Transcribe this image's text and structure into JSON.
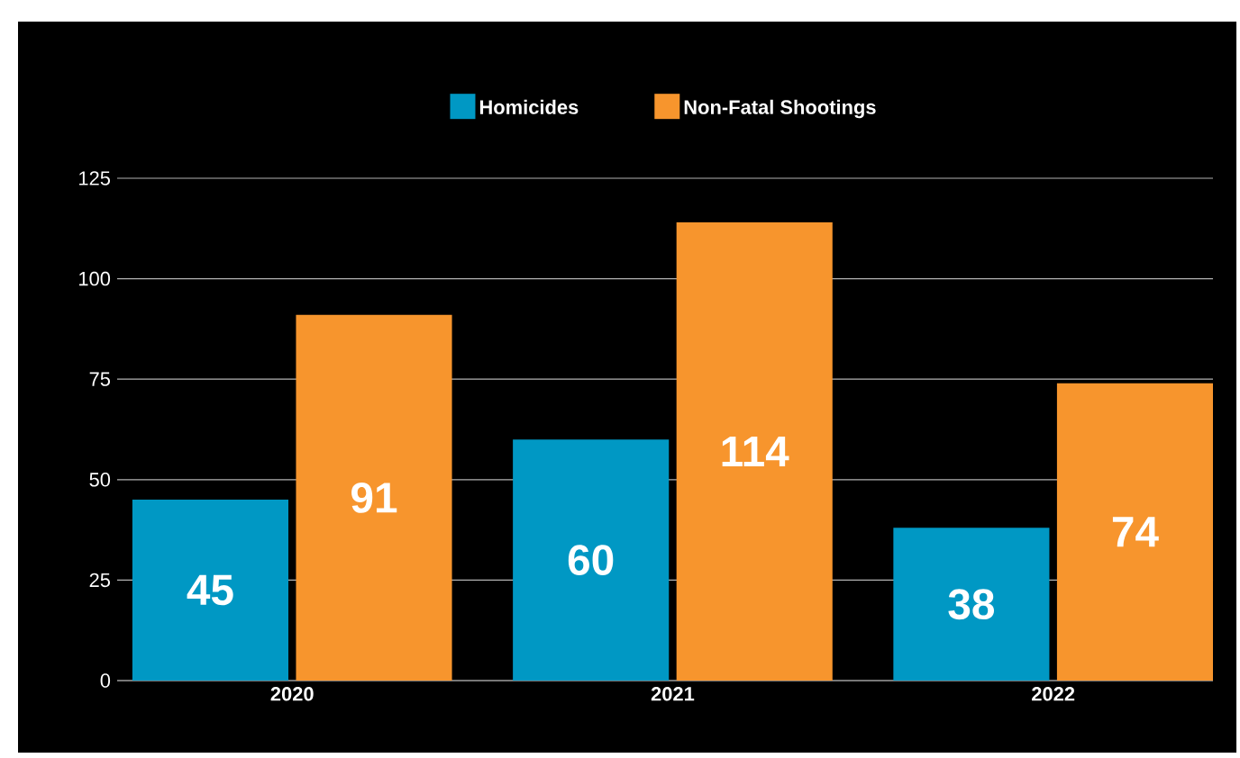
{
  "chart_data": {
    "type": "bar",
    "categories": [
      "2020",
      "2021",
      "2022"
    ],
    "series": [
      {
        "name": "Homicides",
        "color": "#0098c4",
        "values": [
          45,
          60,
          38
        ]
      },
      {
        "name": "Non-Fatal Shootings",
        "color": "#f7952d",
        "values": [
          91,
          114,
          74
        ]
      }
    ],
    "ylim": [
      0,
      125
    ],
    "yticks": [
      0,
      25,
      50,
      75,
      100,
      125
    ],
    "grid": "y",
    "legend": "top",
    "data_labels": true
  }
}
